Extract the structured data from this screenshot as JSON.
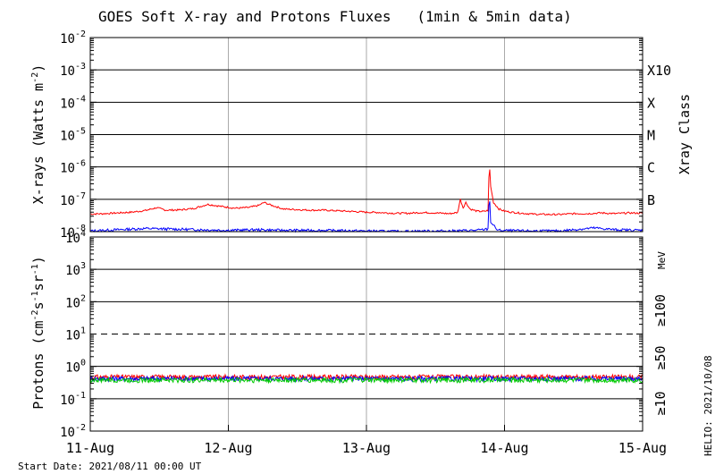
{
  "chart_data": [
    {
      "panel": "xray",
      "type": "line",
      "title": "GOES Soft X-ray and Protons Fluxes   (1min & 5min data)",
      "ylabel": "X-rays (Watts m-2)",
      "ylabel_main": "X-rays (Watts m",
      "ylabel_sup": "-2",
      "ylabel_close": ")",
      "yscale": "log",
      "ylim": [
        1e-08,
        0.01
      ],
      "ytick_exponents": [
        -8,
        -7,
        -6,
        -5,
        -4,
        -3,
        -2
      ],
      "right_axis_label": "Xray Class",
      "class_labels": [
        {
          "label": "B",
          "exponent": -7
        },
        {
          "label": "C",
          "exponent": -6
        },
        {
          "label": "M",
          "exponent": -5
        },
        {
          "label": "X",
          "exponent": -4
        },
        {
          "label": "X10",
          "exponent": -3
        }
      ],
      "x": [
        "2021-08-11",
        "2021-08-12",
        "2021-08-13",
        "2021-08-14",
        "2021-08-15"
      ],
      "series": [
        {
          "color": "#ff0000",
          "points": [
            [
              0.0,
              3.5e-08
            ],
            [
              0.1,
              3.6e-08
            ],
            [
              0.2,
              3.8e-08
            ],
            [
              0.3,
              4e-08
            ],
            [
              0.4,
              4.5e-08
            ],
            [
              0.48,
              5.5e-08
            ],
            [
              0.55,
              4.6e-08
            ],
            [
              0.65,
              4.7e-08
            ],
            [
              0.75,
              5.2e-08
            ],
            [
              0.85,
              7e-08
            ],
            [
              0.95,
              6e-08
            ],
            [
              1.05,
              5.3e-08
            ],
            [
              1.15,
              5.6e-08
            ],
            [
              1.22,
              6.5e-08
            ],
            [
              1.26,
              8e-08
            ],
            [
              1.3,
              6.8e-08
            ],
            [
              1.4,
              5e-08
            ],
            [
              1.5,
              4.8e-08
            ],
            [
              1.6,
              4.6e-08
            ],
            [
              1.7,
              4.6e-08
            ],
            [
              1.8,
              4.4e-08
            ],
            [
              1.9,
              4.2e-08
            ],
            [
              2.0,
              4e-08
            ],
            [
              2.1,
              3.9e-08
            ],
            [
              2.2,
              3.7e-08
            ],
            [
              2.3,
              3.7e-08
            ],
            [
              2.4,
              3.9e-08
            ],
            [
              2.5,
              3.8e-08
            ],
            [
              2.6,
              3.6e-08
            ],
            [
              2.66,
              3.9e-08
            ],
            [
              2.68,
              1e-07
            ],
            [
              2.7,
              5.5e-08
            ],
            [
              2.72,
              8e-08
            ],
            [
              2.75,
              5e-08
            ],
            [
              2.8,
              4.3e-08
            ],
            [
              2.85,
              4.2e-08
            ],
            [
              2.88,
              4.5e-08
            ],
            [
              2.89,
              1.5e-06
            ],
            [
              2.9,
              2.5e-07
            ],
            [
              2.92,
              8e-08
            ],
            [
              2.96,
              5e-08
            ],
            [
              3.0,
              4.3e-08
            ],
            [
              3.05,
              4e-08
            ],
            [
              3.1,
              3.8e-08
            ],
            [
              3.2,
              3.5e-08
            ],
            [
              3.3,
              3.4e-08
            ],
            [
              3.4,
              3.4e-08
            ],
            [
              3.5,
              3.6e-08
            ],
            [
              3.6,
              3.6e-08
            ],
            [
              3.7,
              3.8e-08
            ],
            [
              3.8,
              3.6e-08
            ],
            [
              3.9,
              3.8e-08
            ],
            [
              4.0,
              3.7e-08
            ]
          ]
        },
        {
          "color": "#0000ff",
          "points": [
            [
              0.0,
              1.05e-08
            ],
            [
              0.2,
              1.15e-08
            ],
            [
              0.4,
              1.25e-08
            ],
            [
              0.6,
              1.2e-08
            ],
            [
              0.8,
              1.15e-08
            ],
            [
              1.0,
              1.1e-08
            ],
            [
              1.2,
              1.15e-08
            ],
            [
              1.4,
              1.1e-08
            ],
            [
              1.6,
              1.1e-08
            ],
            [
              1.8,
              1.08e-08
            ],
            [
              2.0,
              1.05e-08
            ],
            [
              2.2,
              1.02e-08
            ],
            [
              2.4,
              1.04e-08
            ],
            [
              2.6,
              1.05e-08
            ],
            [
              2.8,
              1.1e-08
            ],
            [
              2.88,
              1.2e-08
            ],
            [
              2.89,
              1.7e-07
            ],
            [
              2.9,
              2e-08
            ],
            [
              2.95,
              1.1e-08
            ],
            [
              3.1,
              1.06e-08
            ],
            [
              3.4,
              1.05e-08
            ],
            [
              3.55,
              1.2e-08
            ],
            [
              3.65,
              1.3e-08
            ],
            [
              3.8,
              1.15e-08
            ],
            [
              4.0,
              1.1e-08
            ]
          ]
        }
      ]
    },
    {
      "panel": "protons",
      "type": "line",
      "ylabel": "Protons (cm-2s-1sr-1)",
      "ylabel_parts": [
        "Protons (cm",
        "-2",
        "s",
        "-1",
        "sr",
        "-1",
        ")"
      ],
      "yscale": "log",
      "ylim": [
        0.01,
        10000
      ],
      "ytick_exponents": [
        -2,
        -1,
        0,
        1,
        2,
        3,
        4
      ],
      "threshold_line": 10,
      "unit_label": "MeV",
      "x": [
        "2021-08-11",
        "2021-08-12",
        "2021-08-13",
        "2021-08-14",
        "2021-08-15"
      ],
      "series": [
        {
          "name": "≥10",
          "color": "#ff0000",
          "level": 0.47
        },
        {
          "name": "≥50",
          "color": "#0000ff",
          "level": 0.42
        },
        {
          "name": "≥100",
          "color": "#00cc00",
          "level": 0.38
        }
      ]
    }
  ],
  "x_tick_labels": [
    "11-Aug",
    "12-Aug",
    "13-Aug",
    "14-Aug",
    "15-Aug"
  ],
  "footer": {
    "start_date": "Start Date: 2021/08/11 00:00 UT",
    "helio": "HELIO: 2021/10/08"
  }
}
